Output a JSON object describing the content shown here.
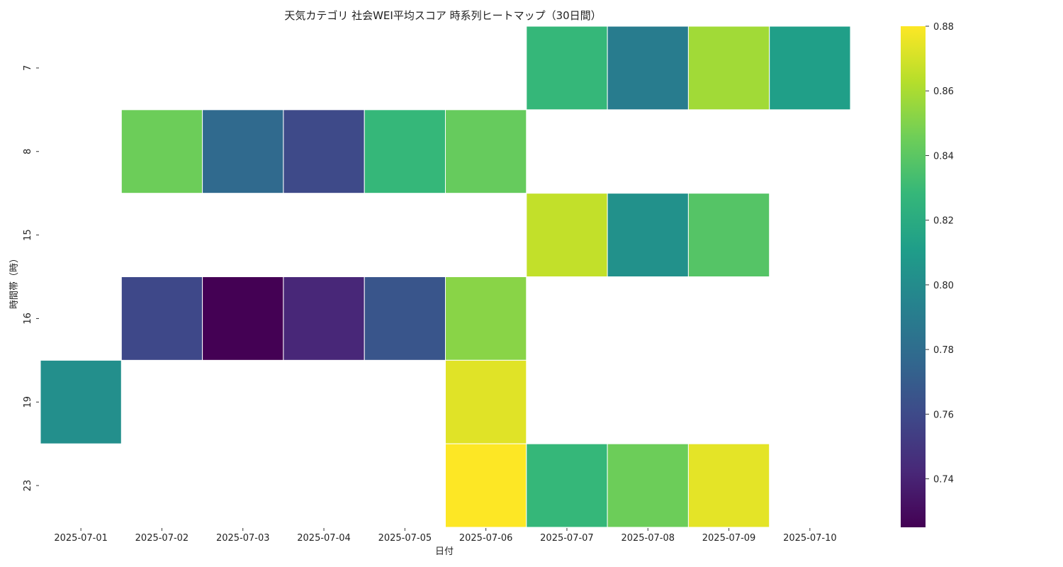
{
  "chart_data": {
    "type": "heatmap",
    "title": "天気カテゴリ 社会WEI平均スコア 時系列ヒートマップ（30日間）",
    "xlabel": "日付",
    "ylabel": "時間帯（時）",
    "x": [
      "2025-07-01",
      "2025-07-02",
      "2025-07-03",
      "2025-07-04",
      "2025-07-05",
      "2025-07-06",
      "2025-07-07",
      "2025-07-08",
      "2025-07-09",
      "2025-07-10"
    ],
    "y": [
      "7",
      "8",
      "15",
      "16",
      "19",
      "23"
    ],
    "values": [
      [
        null,
        null,
        null,
        null,
        null,
        null,
        0.828,
        0.79,
        0.858,
        0.812
      ],
      [
        null,
        0.845,
        0.778,
        0.76,
        0.828,
        0.843,
        null,
        null,
        null,
        null
      ],
      [
        null,
        null,
        null,
        null,
        null,
        null,
        0.866,
        0.803,
        0.838,
        null
      ],
      [
        null,
        0.759,
        0.725,
        0.742,
        0.766,
        0.852,
        null,
        null,
        null,
        null
      ],
      [
        0.802,
        null,
        null,
        null,
        null,
        0.873,
        null,
        null,
        null,
        null
      ],
      [
        null,
        null,
        null,
        null,
        null,
        0.88,
        0.828,
        0.845,
        0.874,
        null
      ]
    ],
    "colormap": "viridis",
    "vmin": 0.725,
    "vmax": 0.88,
    "colorbar_ticks": [
      "0.74",
      "0.76",
      "0.78",
      "0.80",
      "0.82",
      "0.84",
      "0.86",
      "0.88"
    ]
  }
}
